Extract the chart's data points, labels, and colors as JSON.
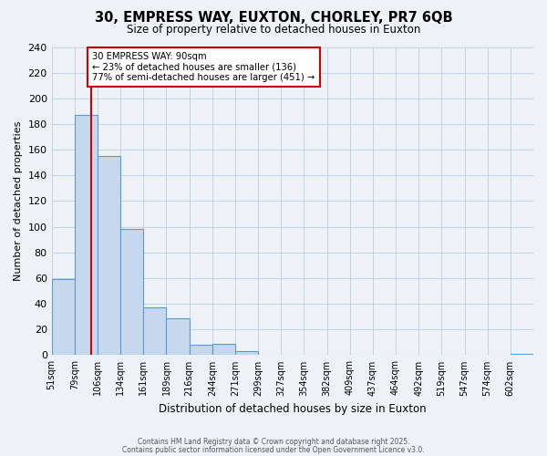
{
  "title": "30, EMPRESS WAY, EUXTON, CHORLEY, PR7 6QB",
  "subtitle": "Size of property relative to detached houses in Euxton",
  "xlabel": "Distribution of detached houses by size in Euxton",
  "ylabel": "Number of detached properties",
  "bin_labels": [
    "51sqm",
    "79sqm",
    "106sqm",
    "134sqm",
    "161sqm",
    "189sqm",
    "216sqm",
    "244sqm",
    "271sqm",
    "299sqm",
    "327sqm",
    "354sqm",
    "382sqm",
    "409sqm",
    "437sqm",
    "464sqm",
    "492sqm",
    "519sqm",
    "547sqm",
    "574sqm",
    "602sqm"
  ],
  "bar_heights": [
    59,
    187,
    155,
    98,
    37,
    29,
    8,
    9,
    3,
    0,
    0,
    0,
    0,
    0,
    0,
    0,
    0,
    0,
    0,
    0,
    1
  ],
  "bar_color": "#c5d8ed",
  "bar_edge_color": "#5b9bd5",
  "ylim": [
    0,
    240
  ],
  "yticks": [
    0,
    20,
    40,
    60,
    80,
    100,
    120,
    140,
    160,
    180,
    200,
    220,
    240
  ],
  "red_line_x": 1.72,
  "annotation_title": "30 EMPRESS WAY: 90sqm",
  "annotation_line1": "← 23% of detached houses are smaller (136)",
  "annotation_line2": "77% of semi-detached houses are larger (451) →",
  "annotation_box_color": "#ffffff",
  "annotation_box_edge_color": "#cc0000",
  "footer_line1": "Contains HM Land Registry data © Crown copyright and database right 2025.",
  "footer_line2": "Contains public sector information licensed under the Open Government Licence v3.0.",
  "background_color": "#eef2f7",
  "grid_color": "#b8cfe0"
}
